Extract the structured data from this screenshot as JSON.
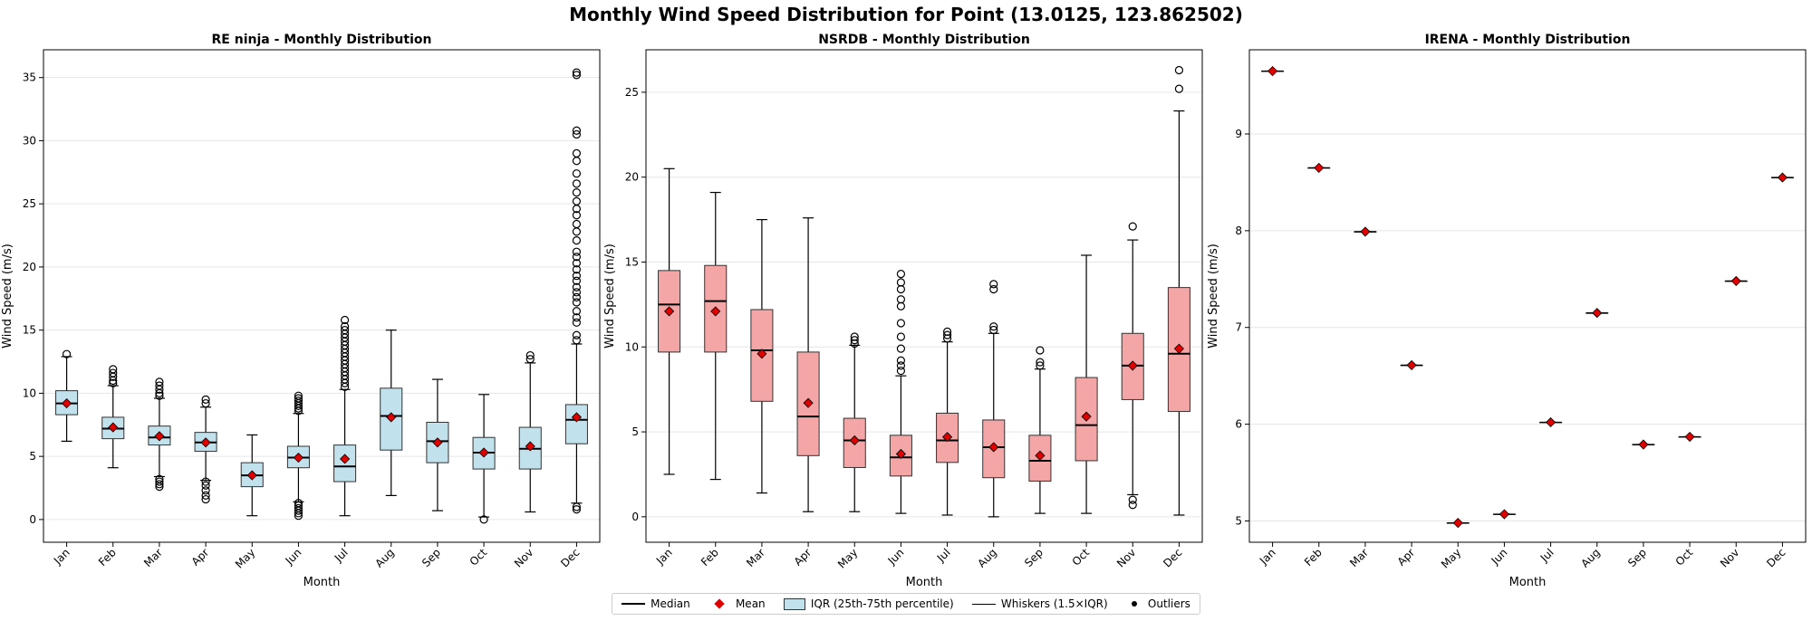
{
  "title": "Monthly Wind Speed Distribution for Point (13.0125, 123.862502)",
  "colors": {
    "mean": "#e00000",
    "re_ninja_box": "#c1e1ec",
    "nsrdb_box": "#f4a6a6"
  },
  "legend": {
    "median": "Median",
    "mean": "Mean",
    "iqr": "IQR (25th-75th percentile)",
    "whiskers": "Whiskers (1.5×IQR)",
    "outliers": "Outliers"
  },
  "chart_data": [
    {
      "type": "box",
      "title": "RE ninja - Monthly Distribution",
      "xlabel": "Month",
      "ylabel": "Wind Speed (m/s)",
      "ylim": [
        -1.8,
        37.2
      ],
      "yticks": [
        0,
        5,
        10,
        15,
        20,
        25,
        30,
        35
      ],
      "box_color": "#c1e1ec",
      "categories": [
        "Jan",
        "Feb",
        "Mar",
        "Apr",
        "May",
        "Jun",
        "Jul",
        "Aug",
        "Sep",
        "Oct",
        "Nov",
        "Dec"
      ],
      "boxes": [
        {
          "whislo": 6.2,
          "q1": 8.3,
          "med": 9.2,
          "q3": 10.2,
          "whishi": 12.9,
          "mean": 9.2,
          "fliers": [
            13.1
          ]
        },
        {
          "whislo": 4.1,
          "q1": 6.4,
          "med": 7.2,
          "q3": 8.1,
          "whishi": 10.6,
          "mean": 7.3,
          "fliers": [
            10.8,
            11.0,
            11.3,
            11.6,
            11.9
          ]
        },
        {
          "whislo": 3.4,
          "q1": 5.9,
          "med": 6.5,
          "q3": 7.4,
          "whishi": 9.6,
          "mean": 6.6,
          "fliers": [
            2.6,
            2.8,
            3.0,
            3.2,
            9.8,
            10.0,
            10.3,
            10.6,
            10.9
          ]
        },
        {
          "whislo": 3.1,
          "q1": 5.4,
          "med": 6.1,
          "q3": 6.9,
          "whishi": 8.9,
          "mean": 6.1,
          "fliers": [
            1.6,
            1.9,
            2.3,
            2.7,
            3.0,
            9.2,
            9.5
          ]
        },
        {
          "whislo": 0.3,
          "q1": 2.6,
          "med": 3.5,
          "q3": 4.5,
          "whishi": 6.7,
          "mean": 3.5,
          "fliers": []
        },
        {
          "whislo": 1.4,
          "q1": 4.1,
          "med": 4.9,
          "q3": 5.8,
          "whishi": 8.4,
          "mean": 4.9,
          "fliers": [
            0.3,
            0.5,
            0.7,
            0.9,
            1.1,
            1.3,
            8.6,
            8.8,
            9.0,
            9.2,
            9.4,
            9.6,
            9.8
          ]
        },
        {
          "whislo": 0.3,
          "q1": 3.0,
          "med": 4.2,
          "q3": 5.9,
          "whishi": 10.3,
          "mean": 4.8,
          "fliers": [
            10.5,
            10.8,
            11.1,
            11.4,
            11.7,
            12.0,
            12.3,
            12.6,
            12.9,
            13.2,
            13.5,
            13.8,
            14.1,
            14.4,
            14.7,
            15.0,
            15.3,
            15.8
          ]
        },
        {
          "whislo": 1.9,
          "q1": 5.5,
          "med": 8.2,
          "q3": 10.4,
          "whishi": 15.0,
          "mean": 8.1,
          "fliers": []
        },
        {
          "whislo": 0.7,
          "q1": 4.5,
          "med": 6.2,
          "q3": 7.7,
          "whishi": 11.1,
          "mean": 6.1,
          "fliers": []
        },
        {
          "whislo": 0.2,
          "q1": 4.0,
          "med": 5.3,
          "q3": 6.5,
          "whishi": 9.9,
          "mean": 5.3,
          "fliers": [
            0.0
          ]
        },
        {
          "whislo": 0.6,
          "q1": 4.0,
          "med": 5.6,
          "q3": 7.3,
          "whishi": 12.4,
          "mean": 5.8,
          "fliers": [
            12.7,
            13.0
          ]
        },
        {
          "whislo": 1.3,
          "q1": 6.0,
          "med": 7.9,
          "q3": 9.1,
          "whishi": 13.9,
          "mean": 8.1,
          "fliers": [
            0.8,
            1.0,
            14.2,
            14.6,
            15.6,
            16.0,
            16.5,
            17.2,
            17.6,
            18.0,
            18.4,
            18.9,
            19.3,
            19.8,
            20.3,
            20.8,
            21.2,
            22.1,
            22.8,
            23.4,
            24.1,
            24.6,
            25.2,
            25.9,
            26.6,
            27.4,
            28.4,
            29.0,
            30.5,
            30.8,
            35.2,
            35.4
          ]
        }
      ]
    },
    {
      "type": "box",
      "title": "NSRDB - Monthly Distribution",
      "xlabel": "Month",
      "ylabel": "Wind Speed (m/s)",
      "ylim": [
        -1.5,
        27.5
      ],
      "yticks": [
        0,
        5,
        10,
        15,
        20,
        25
      ],
      "box_color": "#f4a6a6",
      "categories": [
        "Jan",
        "Feb",
        "Mar",
        "Apr",
        "May",
        "Jun",
        "Jul",
        "Aug",
        "Sep",
        "Oct",
        "Nov",
        "Dec"
      ],
      "boxes": [
        {
          "whislo": 2.5,
          "q1": 9.7,
          "med": 12.5,
          "q3": 14.5,
          "whishi": 20.5,
          "mean": 12.1,
          "fliers": []
        },
        {
          "whislo": 2.2,
          "q1": 9.7,
          "med": 12.7,
          "q3": 14.8,
          "whishi": 19.1,
          "mean": 12.1,
          "fliers": []
        },
        {
          "whislo": 1.4,
          "q1": 6.8,
          "med": 9.8,
          "q3": 12.2,
          "whishi": 17.5,
          "mean": 9.6,
          "fliers": []
        },
        {
          "whislo": 0.3,
          "q1": 3.6,
          "med": 5.9,
          "q3": 9.7,
          "whishi": 17.6,
          "mean": 6.7,
          "fliers": []
        },
        {
          "whislo": 0.3,
          "q1": 2.9,
          "med": 4.5,
          "q3": 5.8,
          "whishi": 10.1,
          "mean": 4.5,
          "fliers": [
            10.2,
            10.4,
            10.6
          ]
        },
        {
          "whislo": 0.2,
          "q1": 2.4,
          "med": 3.5,
          "q3": 4.8,
          "whishi": 8.3,
          "mean": 3.7,
          "fliers": [
            8.6,
            8.9,
            9.2,
            9.9,
            10.6,
            11.4,
            12.4,
            12.8,
            13.4,
            13.8,
            14.3
          ]
        },
        {
          "whislo": 0.1,
          "q1": 3.2,
          "med": 4.5,
          "q3": 6.1,
          "whishi": 10.3,
          "mean": 4.7,
          "fliers": [
            10.5,
            10.7,
            10.9
          ]
        },
        {
          "whislo": 0.0,
          "q1": 2.3,
          "med": 4.1,
          "q3": 5.7,
          "whishi": 10.8,
          "mean": 4.1,
          "fliers": [
            11.0,
            11.2,
            13.4,
            13.7
          ]
        },
        {
          "whislo": 0.2,
          "q1": 2.1,
          "med": 3.3,
          "q3": 4.8,
          "whishi": 8.7,
          "mean": 3.6,
          "fliers": [
            8.9,
            9.1,
            9.8
          ]
        },
        {
          "whislo": 0.2,
          "q1": 3.3,
          "med": 5.4,
          "q3": 8.2,
          "whishi": 15.4,
          "mean": 5.9,
          "fliers": []
        },
        {
          "whislo": 1.3,
          "q1": 6.9,
          "med": 8.9,
          "q3": 10.8,
          "whishi": 16.3,
          "mean": 8.9,
          "fliers": [
            0.7,
            1.0,
            17.1
          ]
        },
        {
          "whislo": 0.1,
          "q1": 6.2,
          "med": 9.6,
          "q3": 13.5,
          "whishi": 23.9,
          "mean": 9.9,
          "fliers": [
            25.2,
            26.3
          ]
        }
      ]
    },
    {
      "type": "box",
      "title": "IRENA - Monthly Distribution",
      "xlabel": "Month",
      "ylabel": "Wind Speed (m/s)",
      "ylim": [
        4.78,
        9.87
      ],
      "yticks": [
        5,
        6,
        7,
        8,
        9
      ],
      "box_color": "#c1e1ec",
      "categories": [
        "Jan",
        "Feb",
        "Mar",
        "Apr",
        "May",
        "Jun",
        "Jul",
        "Aug",
        "Sep",
        "Oct",
        "Nov",
        "Dec"
      ],
      "boxes": [
        {
          "whislo": 9.65,
          "q1": 9.65,
          "med": 9.65,
          "q3": 9.65,
          "whishi": 9.65,
          "mean": 9.65,
          "fliers": []
        },
        {
          "whislo": 8.65,
          "q1": 8.65,
          "med": 8.65,
          "q3": 8.65,
          "whishi": 8.65,
          "mean": 8.65,
          "fliers": []
        },
        {
          "whislo": 7.99,
          "q1": 7.99,
          "med": 7.99,
          "q3": 7.99,
          "whishi": 7.99,
          "mean": 7.99,
          "fliers": []
        },
        {
          "whislo": 6.61,
          "q1": 6.61,
          "med": 6.61,
          "q3": 6.61,
          "whishi": 6.61,
          "mean": 6.61,
          "fliers": []
        },
        {
          "whislo": 4.98,
          "q1": 4.98,
          "med": 4.98,
          "q3": 4.98,
          "whishi": 4.98,
          "mean": 4.98,
          "fliers": []
        },
        {
          "whislo": 5.07,
          "q1": 5.07,
          "med": 5.07,
          "q3": 5.07,
          "whishi": 5.07,
          "mean": 5.07,
          "fliers": []
        },
        {
          "whislo": 6.02,
          "q1": 6.02,
          "med": 6.02,
          "q3": 6.02,
          "whishi": 6.02,
          "mean": 6.02,
          "fliers": []
        },
        {
          "whislo": 7.15,
          "q1": 7.15,
          "med": 7.15,
          "q3": 7.15,
          "whishi": 7.15,
          "mean": 7.15,
          "fliers": []
        },
        {
          "whislo": 5.79,
          "q1": 5.79,
          "med": 5.79,
          "q3": 5.79,
          "whishi": 5.79,
          "mean": 5.79,
          "fliers": []
        },
        {
          "whislo": 5.87,
          "q1": 5.87,
          "med": 5.87,
          "q3": 5.87,
          "whishi": 5.87,
          "mean": 5.87,
          "fliers": []
        },
        {
          "whislo": 7.48,
          "q1": 7.48,
          "med": 7.48,
          "q3": 7.48,
          "whishi": 7.48,
          "mean": 7.48,
          "fliers": []
        },
        {
          "whislo": 8.55,
          "q1": 8.55,
          "med": 8.55,
          "q3": 8.55,
          "whishi": 8.55,
          "mean": 8.55,
          "fliers": []
        }
      ]
    }
  ]
}
